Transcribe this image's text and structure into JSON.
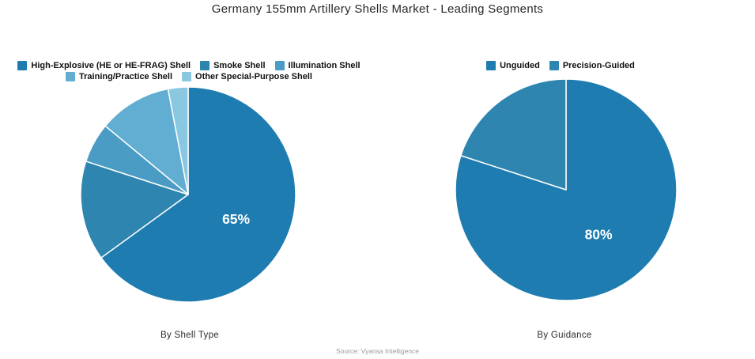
{
  "title": "Germany 155mm Artillery Shells Market - Leading Segments",
  "source": "Source: Vyansa Intelligence",
  "colors": {
    "series1": "#1e7cb0",
    "series2": "#2e86b0",
    "series3": "#4a9cc4",
    "series4": "#61aed2",
    "series5": "#8ac7e0",
    "data_label": "#ffffff",
    "background": "#ffffff"
  },
  "chart_data": [
    {
      "type": "pie",
      "title": "By Shell Type",
      "legend_position": "top",
      "start_angle": "top",
      "direction": "clockwise",
      "slices": [
        {
          "label": "High-Explosive (HE or HE-FRAG) Shell",
          "value": 65,
          "color": "#1e7cb0",
          "data_label": "65%"
        },
        {
          "label": "Smoke Shell",
          "value": 15,
          "color": "#2e86b0",
          "data_label": ""
        },
        {
          "label": "Illumination Shell",
          "value": 6,
          "color": "#4a9cc4",
          "data_label": ""
        },
        {
          "label": "Training/Practice Shell",
          "value": 11,
          "color": "#61aed2",
          "data_label": ""
        },
        {
          "label": "Other Special-Purpose Shell",
          "value": 3,
          "color": "#8ac7e0",
          "data_label": ""
        }
      ]
    },
    {
      "type": "pie",
      "title": "By Guidance",
      "legend_position": "top",
      "start_angle": "top",
      "direction": "clockwise",
      "slices": [
        {
          "label": "Unguided",
          "value": 80,
          "color": "#1e7cb0",
          "data_label": "80%"
        },
        {
          "label": "Precision-Guided",
          "value": 20,
          "color": "#2e86b0",
          "data_label": ""
        }
      ]
    }
  ]
}
